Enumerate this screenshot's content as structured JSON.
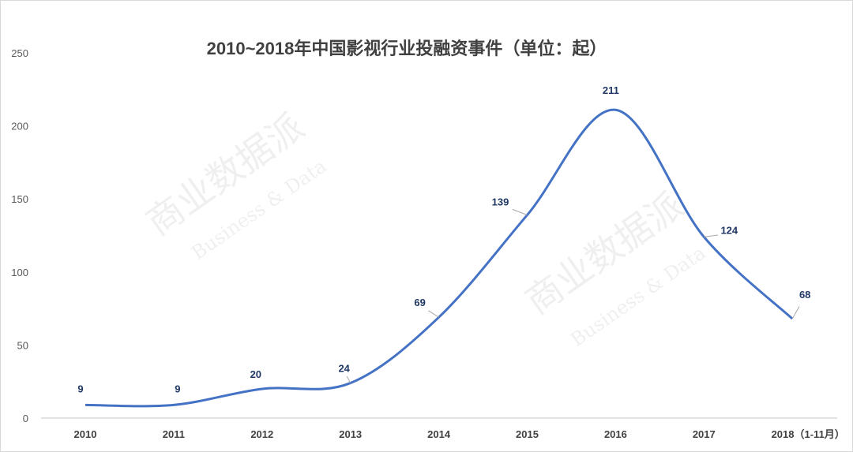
{
  "chart_data": {
    "type": "line",
    "title": "2010~2018年中国影视行业投融资事件（单位：起）",
    "categories": [
      "2010",
      "2011",
      "2012",
      "2013",
      "2014",
      "2015",
      "2016",
      "2017",
      "2018（1-11月）"
    ],
    "values": [
      9,
      9,
      20,
      24,
      69,
      139,
      211,
      124,
      68
    ],
    "data_labels": [
      "9",
      "9",
      "20",
      "24",
      "69",
      "139",
      "211",
      "124",
      "68"
    ],
    "ylim": [
      0,
      250
    ],
    "yticks": [
      "0",
      "50",
      "100",
      "150",
      "200",
      "250"
    ],
    "xlabel": "",
    "ylabel": "",
    "grid": false,
    "legend": "none",
    "smooth": true,
    "line_color": "#4472c4"
  },
  "watermark": {
    "text": "商业数据派",
    "subtext": "Business & Data"
  }
}
